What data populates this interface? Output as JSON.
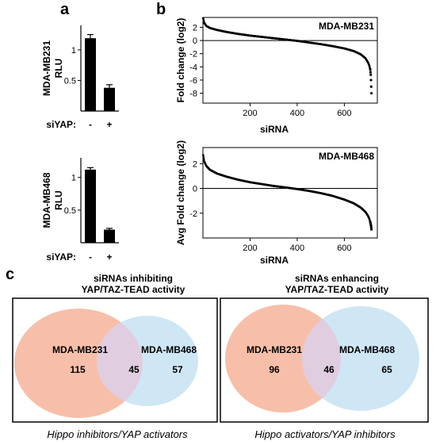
{
  "panels": {
    "a": "a",
    "b": "b",
    "c": "c"
  },
  "chart_data": [
    {
      "type": "bar",
      "panel": "a",
      "ylabel": [
        "MDA-MB231",
        "RLU"
      ],
      "categories": [
        "-",
        "+"
      ],
      "xlabel": "siYAP:",
      "values": [
        1.19,
        0.38
      ],
      "errors": [
        0.06,
        0.05
      ],
      "ylim": [
        0,
        1.4
      ],
      "yticks": [
        {
          "v": 0.5,
          "label": "0.5"
        },
        {
          "v": 1.0,
          "label": "1"
        }
      ],
      "bar_color": "#000000"
    },
    {
      "type": "bar",
      "panel": "a",
      "ylabel": [
        "MDA-MB468",
        "RLU"
      ],
      "categories": [
        "-",
        "+"
      ],
      "xlabel": "siYAP:",
      "values": [
        1.12,
        0.2
      ],
      "errors": [
        0.03,
        0.02
      ],
      "ylim": [
        0,
        1.3
      ],
      "yticks": [
        {
          "v": 0.5,
          "label": "0.5"
        },
        {
          "v": 1.0,
          "label": "1"
        }
      ],
      "bar_color": "#000000"
    },
    {
      "type": "scatter",
      "panel": "b",
      "title": "MDA-MB231",
      "xlabel": "siRNA",
      "ylabel": "Fold change (log2)",
      "xlim": [
        0,
        740
      ],
      "ylim": [
        -9.5,
        3.5
      ],
      "xticks": [
        200,
        400,
        600
      ],
      "yticks": [
        2,
        0,
        -2,
        -4,
        -6,
        -8
      ],
      "n_points": 715,
      "profile": {
        "x": [
          1,
          5,
          15,
          30,
          60,
          100,
          150,
          200,
          250,
          300,
          350,
          400,
          450,
          500,
          550,
          600,
          640,
          670,
          690,
          700,
          705,
          710,
          712,
          713,
          714,
          715
        ],
        "y": [
          3.4,
          2.7,
          2.2,
          1.9,
          1.6,
          1.3,
          1.0,
          0.75,
          0.55,
          0.35,
          0.15,
          -0.05,
          -0.3,
          -0.55,
          -0.85,
          -1.2,
          -1.6,
          -2.1,
          -2.7,
          -3.3,
          -3.7,
          -4.4,
          -5.2,
          -6.0,
          -7.0,
          -8.0
        ]
      },
      "zero_line": true
    },
    {
      "type": "scatter",
      "panel": "b",
      "title": "MDA-MB468",
      "xlabel": "siRNA",
      "ylabel": "Avg Fold change (log2)",
      "xlim": [
        0,
        740
      ],
      "ylim": [
        -4,
        3.3
      ],
      "xticks": [
        200,
        400,
        600
      ],
      "yticks": [
        2,
        0,
        -2
      ],
      "n_points": 715,
      "profile": {
        "x": [
          1,
          5,
          15,
          30,
          60,
          100,
          150,
          200,
          250,
          300,
          350,
          400,
          450,
          500,
          550,
          600,
          640,
          670,
          690,
          700,
          705,
          710,
          712,
          713,
          714,
          715
        ],
        "y": [
          2.7,
          2.2,
          1.8,
          1.5,
          1.2,
          0.95,
          0.7,
          0.5,
          0.35,
          0.2,
          0.08,
          -0.05,
          -0.2,
          -0.38,
          -0.6,
          -0.9,
          -1.2,
          -1.55,
          -1.9,
          -2.2,
          -2.4,
          -2.7,
          -2.9,
          -3.0,
          -3.15,
          -3.3
        ]
      },
      "zero_line": true
    }
  ],
  "venn": [
    {
      "title": [
        "siRNAs inhibiting",
        "YAP/TAZ-TEAD activity"
      ],
      "left_label": "MDA-MB231",
      "right_label": "MDA-MB468",
      "left_only": "115",
      "overlap": "45",
      "right_only": "57",
      "caption": "Hippo inhibitors/YAP activators",
      "left_color": "#f7bfa9",
      "right_color": "#cfe6f5",
      "overlap_color": "#e1cde0"
    },
    {
      "title": [
        "siRNAs enhancing",
        "YAP/TAZ-TEAD activity"
      ],
      "left_label": "MDA-MB231",
      "right_label": "MDA-MB468",
      "left_only": "96",
      "overlap": "46",
      "right_only": "65",
      "caption": "Hippo activators/YAP inhibitors",
      "left_color": "#f7bfa9",
      "right_color": "#cfe6f5",
      "overlap_color": "#e1cde0"
    }
  ]
}
